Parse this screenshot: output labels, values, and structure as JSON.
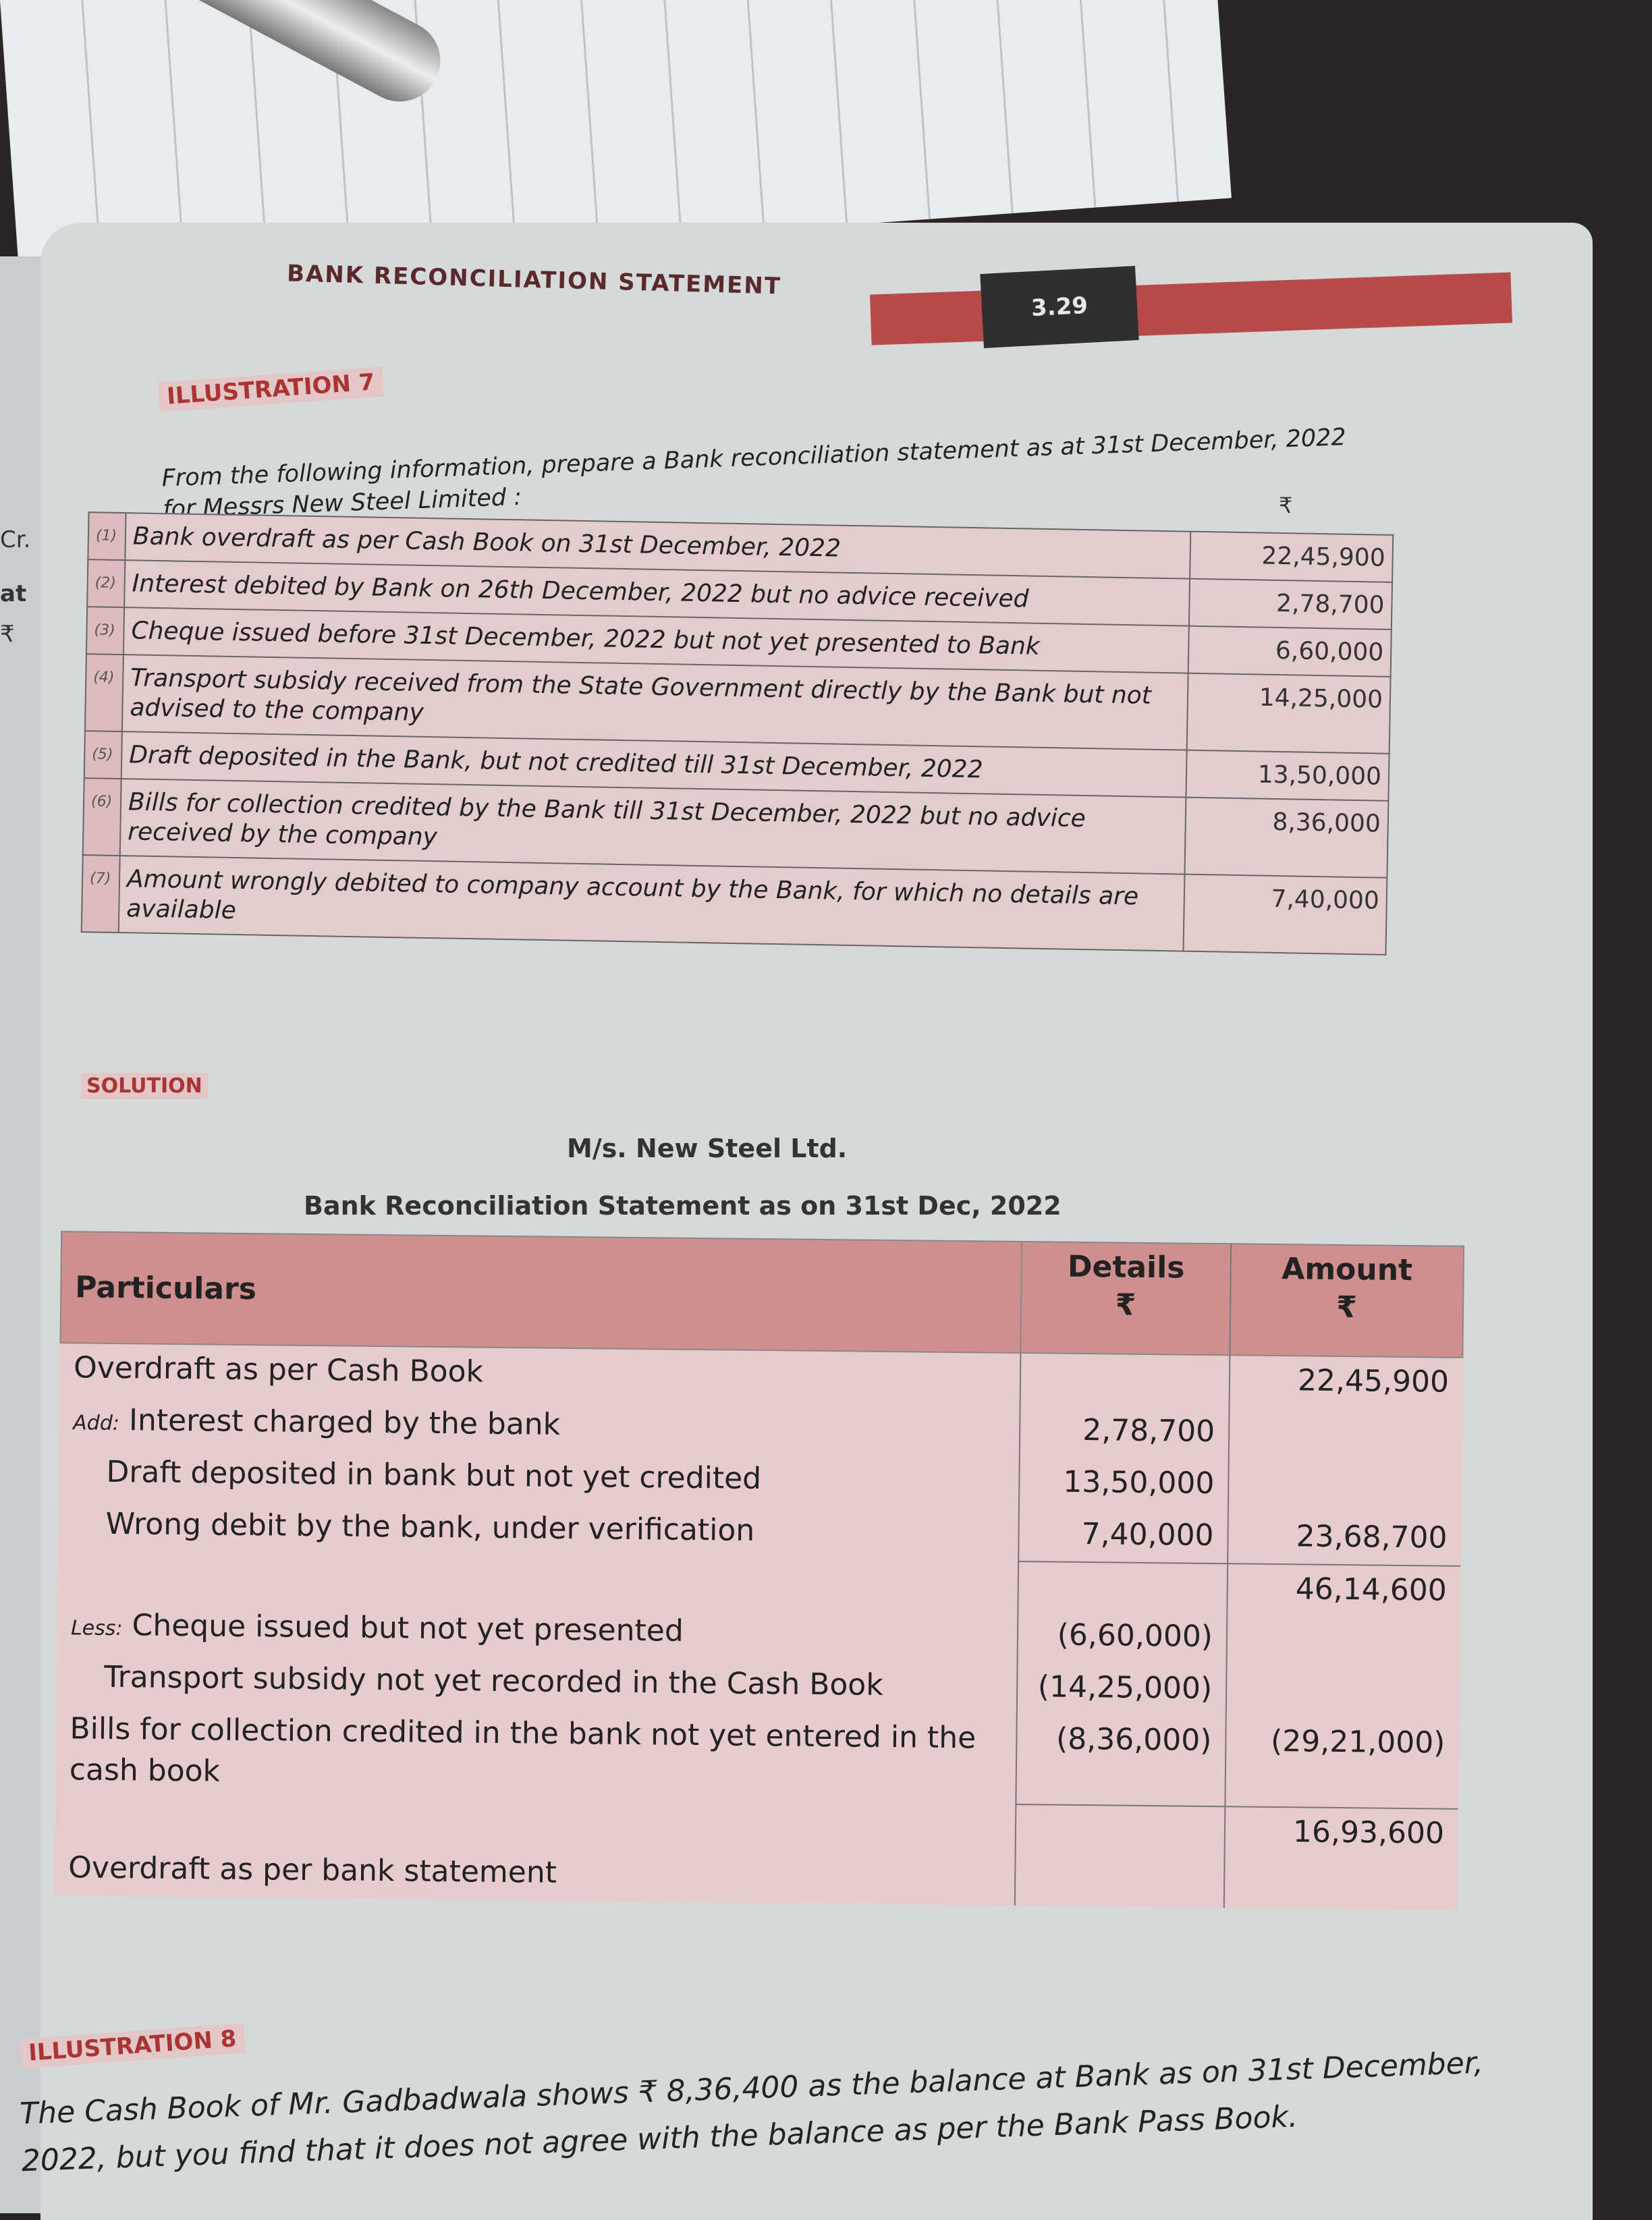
{
  "header": {
    "title": "BANK RECONCILIATION STATEMENT",
    "page_number": "3.29"
  },
  "illustration7": {
    "label": "ILLUSTRATION 7",
    "intro": "From the following information, prepare a Bank reconciliation statement as at 31st December, 2022 for Messrs New Steel Limited :",
    "currency": "₹",
    "items": [
      {
        "no": "(1)",
        "text": "Bank overdraft as per Cash Book on 31st December, 2022",
        "amount": "22,45,900"
      },
      {
        "no": "(2)",
        "text": "Interest debited by Bank on 26th December, 2022 but no advice received",
        "amount": "2,78,700"
      },
      {
        "no": "(3)",
        "text": "Cheque issued before 31st December, 2022 but not yet presented to Bank",
        "amount": "6,60,000"
      },
      {
        "no": "(4)",
        "text": "Transport subsidy received from the State Government directly by the Bank but not advised to the company",
        "amount": "14,25,000"
      },
      {
        "no": "(5)",
        "text": "Draft deposited in the Bank, but not credited till 31st December, 2022",
        "amount": "13,50,000"
      },
      {
        "no": "(6)",
        "text": "Bills for collection credited by the Bank till 31st December, 2022 but no advice received by the company",
        "amount": "8,36,000"
      },
      {
        "no": "(7)",
        "text": "Amount wrongly debited to company account by the Bank, for which no details are available",
        "amount": "7,40,000"
      }
    ]
  },
  "solution": {
    "label": "SOLUTION",
    "company": "M/s. New Steel Ltd.",
    "title": "Bank Reconciliation Statement as on 31st Dec, 2022",
    "columns": {
      "particulars": "Particulars",
      "details": "Details",
      "amount": "Amount",
      "currency": "₹"
    },
    "rows": [
      {
        "prefix": "",
        "text": "Overdraft as per Cash Book",
        "details": "",
        "amount": "22,45,900"
      },
      {
        "prefix": "Add:",
        "text": "Interest charged by the bank",
        "details": "2,78,700",
        "amount": ""
      },
      {
        "prefix": "",
        "text": "Draft deposited in bank but not yet credited",
        "details": "13,50,000",
        "amount": ""
      },
      {
        "prefix": "",
        "text": "Wrong debit by the bank, under verification",
        "details": "7,40,000",
        "amount": "23,68,700"
      },
      {
        "prefix": "",
        "text": "",
        "details": "",
        "amount": "46,14,600"
      },
      {
        "prefix": "Less:",
        "text": "Cheque issued but not yet presented",
        "details": "(6,60,000)",
        "amount": ""
      },
      {
        "prefix": "",
        "text": "Transport subsidy not yet recorded in the Cash Book",
        "details": "(14,25,000)",
        "amount": ""
      },
      {
        "prefix": "",
        "text": "Bills for collection credited in the bank not yet entered in the cash book",
        "details": "(8,36,000)",
        "amount": "(29,21,000)"
      },
      {
        "prefix": "",
        "text": "",
        "details": "",
        "amount": "16,93,600"
      },
      {
        "prefix": "",
        "text": "Overdraft as per bank statement",
        "details": "",
        "amount": ""
      }
    ]
  },
  "illustration8": {
    "label": "ILLUSTRATION 8",
    "text": "The Cash Book of Mr. Gadbadwala shows ₹ 8,36,400 as the balance at Bank as on 31st December, 2022, but you find that it does not agree with the balance as per the Bank Pass Book."
  },
  "left_margin": {
    "cr": "Cr.",
    "at": "at",
    "rupee": "₹"
  }
}
